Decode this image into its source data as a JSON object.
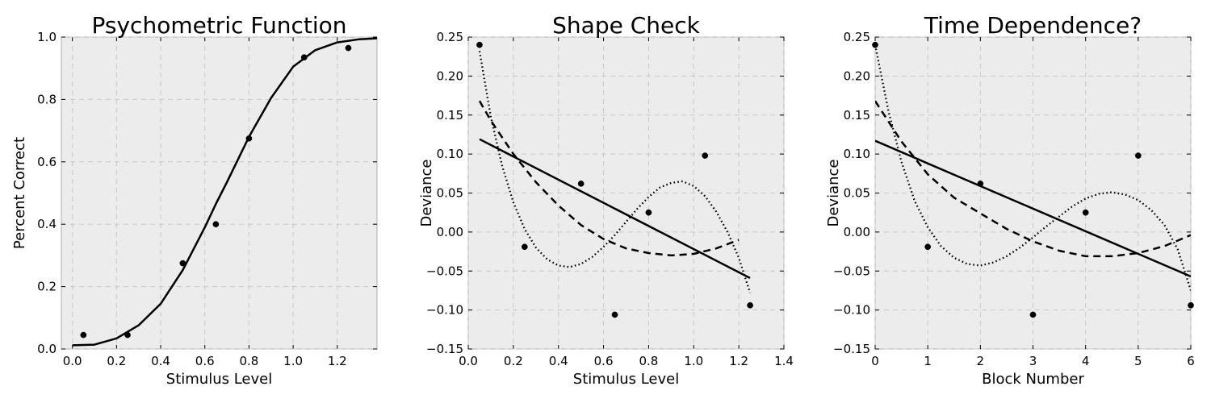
{
  "chart_data": [
    {
      "type": "scatter",
      "title": "Psychometric Function",
      "xlabel": "Stimulus Level",
      "ylabel": "Percent Correct",
      "xlim": [
        -0.05,
        1.38
      ],
      "ylim": [
        0.0,
        1.0
      ],
      "xticks": [
        0.0,
        0.2,
        0.4,
        0.6,
        0.8,
        1.0,
        1.2
      ],
      "xtick_labels": [
        "0.0",
        "0.2",
        "0.4",
        "0.6",
        "0.8",
        "1.0",
        "1.2"
      ],
      "yticks": [
        0.0,
        0.2,
        0.4,
        0.6,
        0.8,
        1.0
      ],
      "ytick_labels": [
        "0.0",
        "0.2",
        "0.4",
        "0.6",
        "0.8",
        "1.0"
      ],
      "grid": true,
      "points": {
        "x": [
          0.05,
          0.25,
          0.5,
          0.65,
          0.8,
          1.05,
          1.25
        ],
        "y": [
          0.045,
          0.045,
          0.275,
          0.4,
          0.675,
          0.935,
          0.965
        ]
      },
      "curves": [
        {
          "style": "solid",
          "x": [
            0.0,
            0.1,
            0.2,
            0.3,
            0.4,
            0.5,
            0.6,
            0.65,
            0.7,
            0.8,
            0.9,
            1.0,
            1.1,
            1.2,
            1.3,
            1.38
          ],
          "y": [
            0.012,
            0.014,
            0.034,
            0.076,
            0.145,
            0.253,
            0.39,
            0.465,
            0.535,
            0.68,
            0.805,
            0.905,
            0.958,
            0.983,
            0.993,
            0.996
          ]
        }
      ]
    },
    {
      "type": "scatter",
      "title": "Shape Check",
      "xlabel": "Stimulus Level",
      "ylabel": "Deviance",
      "xlim": [
        0.0,
        1.4
      ],
      "ylim": [
        -0.15,
        0.25
      ],
      "xticks": [
        0.0,
        0.2,
        0.4,
        0.6,
        0.8,
        1.0,
        1.2,
        1.4
      ],
      "xtick_labels": [
        "0.0",
        "0.2",
        "0.4",
        "0.6",
        "0.8",
        "1.0",
        "1.2",
        "1.4"
      ],
      "yticks": [
        -0.15,
        -0.1,
        -0.05,
        0.0,
        0.05,
        0.1,
        0.15,
        0.2,
        0.25
      ],
      "ytick_labels": [
        "−0.15",
        "−0.10",
        "−0.05",
        "0.00",
        "0.05",
        "0.10",
        "0.15",
        "0.20",
        "0.25"
      ],
      "grid": true,
      "points": {
        "x": [
          0.05,
          0.25,
          0.5,
          0.65,
          0.8,
          1.05,
          1.25
        ],
        "y": [
          0.24,
          -0.019,
          0.062,
          -0.106,
          0.025,
          0.098,
          -0.094
        ]
      },
      "curves": [
        {
          "style": "solid",
          "x": [
            0.05,
            1.25
          ],
          "y": [
            0.119,
            -0.059
          ]
        },
        {
          "style": "dashed",
          "x": [
            0.05,
            0.1,
            0.2,
            0.3,
            0.4,
            0.5,
            0.6,
            0.7,
            0.8,
            0.9,
            1.0,
            1.1,
            1.2
          ],
          "y": [
            0.168,
            0.143,
            0.1,
            0.064,
            0.034,
            0.009,
            -0.009,
            -0.021,
            -0.027,
            -0.03,
            -0.028,
            -0.021,
            -0.01
          ]
        },
        {
          "style": "dotted",
          "x": [
            0.05,
            0.1,
            0.15,
            0.2,
            0.25,
            0.3,
            0.35,
            0.4,
            0.45,
            0.5,
            0.55,
            0.6,
            0.65,
            0.7,
            0.75,
            0.8,
            0.85,
            0.9,
            0.95,
            1.0,
            1.05,
            1.1,
            1.15,
            1.2,
            1.25
          ],
          "y": [
            0.232,
            0.148,
            0.085,
            0.038,
            0.004,
            -0.02,
            -0.035,
            -0.043,
            -0.045,
            -0.041,
            -0.032,
            -0.019,
            -0.004,
            0.013,
            0.03,
            0.045,
            0.057,
            0.063,
            0.065,
            0.059,
            0.046,
            0.026,
            0.0,
            -0.033,
            -0.078
          ]
        }
      ]
    },
    {
      "type": "scatter",
      "title": "Time Dependence?",
      "xlabel": "Block Number",
      "ylabel": "Deviance",
      "xlim": [
        0,
        6
      ],
      "ylim": [
        -0.15,
        0.25
      ],
      "xticks": [
        0,
        1,
        2,
        3,
        4,
        5,
        6
      ],
      "xtick_labels": [
        "0",
        "1",
        "2",
        "3",
        "4",
        "5",
        "6"
      ],
      "yticks": [
        -0.15,
        -0.1,
        -0.05,
        0.0,
        0.05,
        0.1,
        0.15,
        0.2,
        0.25
      ],
      "ytick_labels": [
        "−0.15",
        "−0.10",
        "−0.05",
        "0.00",
        "0.05",
        "0.10",
        "0.15",
        "0.20",
        "0.25"
      ],
      "grid": true,
      "points": {
        "x": [
          0,
          1,
          2,
          3,
          4,
          5,
          6
        ],
        "y": [
          0.24,
          -0.019,
          0.062,
          -0.106,
          0.025,
          0.098,
          -0.094
        ]
      },
      "curves": [
        {
          "style": "solid",
          "x": [
            0,
            6
          ],
          "y": [
            0.117,
            -0.057
          ]
        },
        {
          "style": "dashed",
          "x": [
            0,
            0.5,
            1,
            1.5,
            2,
            2.5,
            3,
            3.5,
            4,
            4.5,
            5,
            5.5,
            6
          ],
          "y": [
            0.168,
            0.116,
            0.074,
            0.044,
            0.024,
            0.004,
            -0.012,
            -0.024,
            -0.031,
            -0.031,
            -0.027,
            -0.018,
            -0.004
          ]
        },
        {
          "style": "dotted",
          "x": [
            0,
            0.25,
            0.5,
            0.75,
            1,
            1.25,
            1.5,
            1.75,
            2,
            2.25,
            2.5,
            2.75,
            3,
            3.25,
            3.5,
            3.75,
            4,
            4.25,
            4.5,
            4.75,
            5,
            5.25,
            5.5,
            5.75,
            6
          ],
          "y": [
            0.24,
            0.156,
            0.09,
            0.04,
            0.006,
            -0.018,
            -0.033,
            -0.041,
            -0.043,
            -0.039,
            -0.031,
            -0.02,
            -0.007,
            0.007,
            0.02,
            0.033,
            0.043,
            0.049,
            0.051,
            0.048,
            0.041,
            0.028,
            0.009,
            -0.022,
            -0.075
          ]
        }
      ]
    }
  ]
}
